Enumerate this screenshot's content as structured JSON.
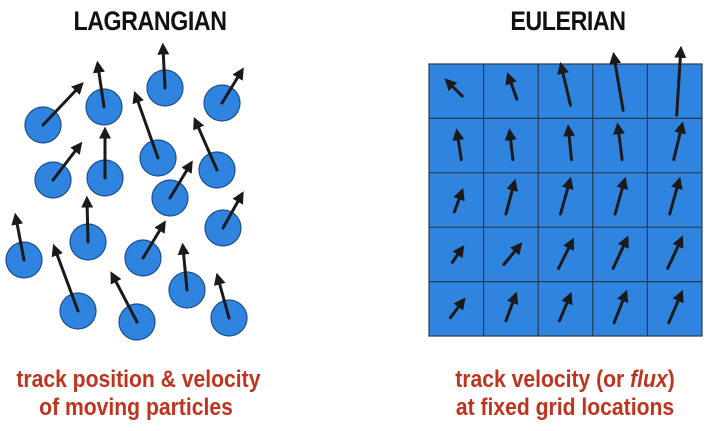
{
  "lagrangian": {
    "title": "LAGRANGIAN",
    "caption_line1": "track position & velocity",
    "caption_line2": "of moving particles"
  },
  "eulerian": {
    "title": "EULERIAN",
    "caption_pre": "track velocity (or ",
    "caption_em": "flux",
    "caption_post": ")",
    "caption_line2": "at fixed grid locations"
  },
  "colors": {
    "particle_fill": "#2f84e0",
    "grid_fill": "#2f84e0",
    "arrow": "#1a1a1a",
    "caption": "#c0341f"
  }
}
